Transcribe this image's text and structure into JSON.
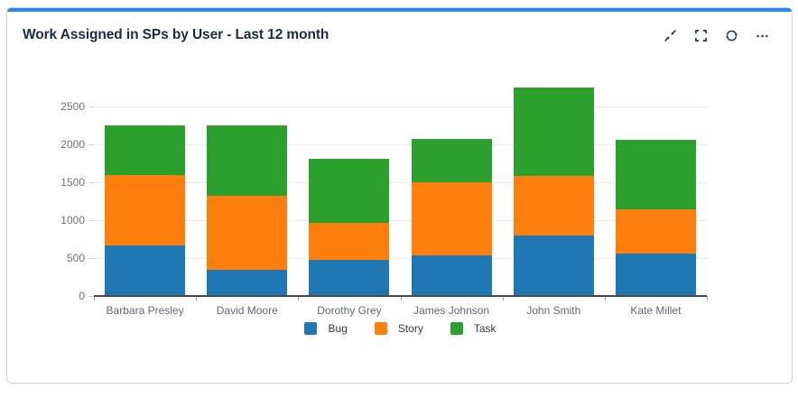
{
  "card": {
    "title": "Work Assigned in SPs by User - Last 12 month",
    "accent_color": "#2684FF",
    "toolbar_icons": [
      "collapse-icon",
      "fullscreen-icon",
      "refresh-icon",
      "more-icon"
    ]
  },
  "chart_data": {
    "type": "bar",
    "stacked": true,
    "title": "Work Assigned in SPs by User - Last 12 month",
    "categories": [
      "Barbara Presley",
      "David Moore",
      "Dorothy Grey",
      "James Johnson",
      "John Smith",
      "Kate Millet"
    ],
    "series": [
      {
        "name": "Bug",
        "color": "#1f77b4",
        "values": [
          660,
          340,
          470,
          540,
          800,
          560
        ]
      },
      {
        "name": "Story",
        "color": "#ff7f0e",
        "values": [
          930,
          975,
          490,
          960,
          780,
          580
        ]
      },
      {
        "name": "Task",
        "color": "#2ca02c",
        "values": [
          660,
          935,
          840,
          570,
          1165,
          920
        ]
      }
    ],
    "stack_totals": [
      2250,
      2250,
      1800,
      2070,
      2745,
      2060
    ],
    "xlabel": "",
    "ylabel": "",
    "yticks": [
      0,
      500,
      1000,
      1500,
      2000,
      2500
    ],
    "ylim": [
      0,
      2815
    ],
    "grid": true,
    "legend_position": "bottom",
    "axis_line_color": "#46494e",
    "gridline_color": "#e7e9ee"
  }
}
